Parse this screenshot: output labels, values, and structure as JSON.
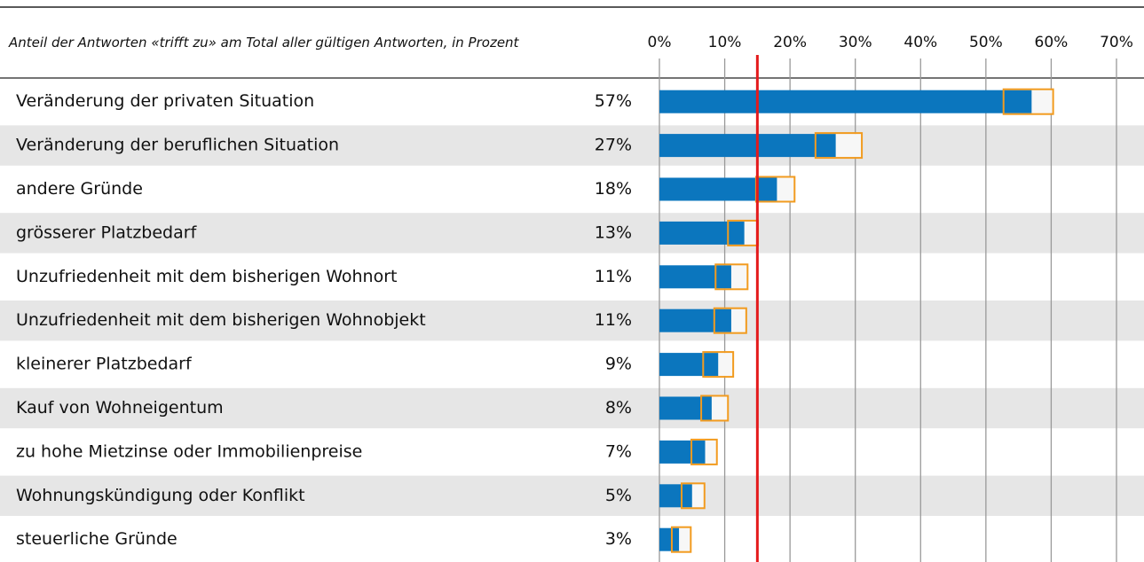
{
  "chart_data": {
    "type": "bar",
    "subtitle": "Anteil der Antworten «trifft zu» am Total aller gültigen Antworten, in Prozent",
    "categories": [
      "Veränderung der privaten Situation",
      "Veränderung der beruflichen Situation",
      "andere Gründe",
      "grösserer Platzbedarf",
      "Unzufriedenheit mit dem bisherigen Wohnort",
      "Unzufriedenheit mit dem bisherigen Wohnobjekt",
      "kleinerer Platzbedarf",
      "Kauf von Wohneigentum",
      "zu hohe Mietzinse oder Immobilienpreise",
      "Wohnungskündigung oder Konflikt",
      "steuerliche Gründe"
    ],
    "values": [
      57,
      27,
      18,
      13,
      11,
      11,
      9,
      8,
      7,
      5,
      3
    ],
    "value_labels": [
      "57%",
      "27%",
      "18%",
      "13%",
      "11%",
      "11%",
      "9%",
      "8%",
      "7%",
      "5%",
      "3%"
    ],
    "ci_low": [
      52.7,
      23.9,
      14.8,
      10.5,
      8.6,
      8.4,
      6.7,
      6.4,
      4.9,
      3.4,
      1.9
    ],
    "ci_high": [
      60.3,
      31.0,
      20.7,
      15.1,
      13.5,
      13.3,
      11.3,
      10.5,
      8.8,
      6.9,
      4.8
    ],
    "reference_line": 15,
    "color": "#0b76be",
    "ci_color": "#f29b1f",
    "reference_color": "#e41a1c",
    "xlim": [
      0,
      70
    ],
    "xticks": [
      {
        "value": 0,
        "label": "0%"
      },
      {
        "value": 10,
        "label": "10%"
      },
      {
        "value": 20,
        "label": "20%"
      },
      {
        "value": 30,
        "label": "30%"
      },
      {
        "value": 40,
        "label": "40%"
      },
      {
        "value": 50,
        "label": "50%"
      },
      {
        "value": 60,
        "label": "60%"
      },
      {
        "value": 70,
        "label": "70%"
      }
    ],
    "grid": true
  }
}
